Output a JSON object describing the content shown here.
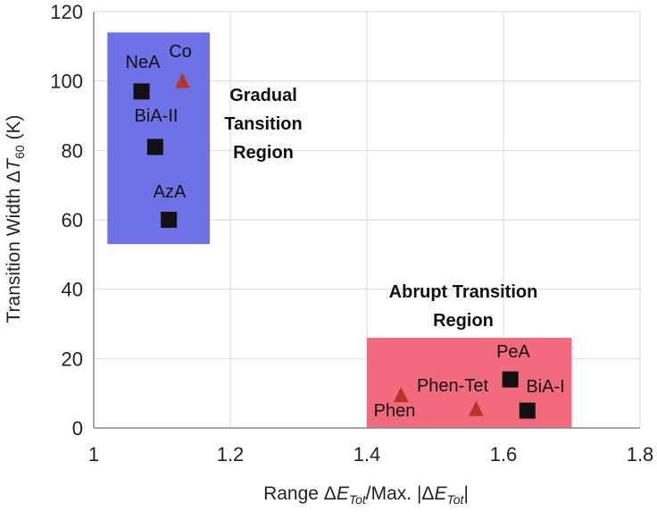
{
  "chart_data": {
    "type": "scatter",
    "xlabel": {
      "pre": "Range Δ",
      "var": "E",
      "sub": "Tot",
      "mid": "/Max. |Δ",
      "var2": "E",
      "sub2": "Tot",
      "post": "|"
    },
    "ylabel": {
      "pre": "Transition Width Δ",
      "var": "T",
      "sub": "60",
      "post": " (K)"
    },
    "xlim": [
      1,
      1.8
    ],
    "ylim": [
      0,
      120
    ],
    "x_ticks": [
      "1",
      "1.2",
      "1.4",
      "1.6",
      "1.8"
    ],
    "y_ticks": [
      "0",
      "20",
      "40",
      "60",
      "80",
      "100",
      "120"
    ],
    "grid": true,
    "regions": [
      {
        "name": "Gradual Tansition Region",
        "lines": [
          "Gradual",
          "Tansition",
          "Region"
        ],
        "x": [
          1.02,
          1.17
        ],
        "y": [
          53,
          114
        ],
        "color": "#6f72e6"
      },
      {
        "name": "Abrupt Transition Region",
        "lines": [
          "Abrupt Transition",
          "Region"
        ],
        "x": [
          1.4,
          1.7
        ],
        "y": [
          0,
          26
        ],
        "color": "#f26b7d"
      }
    ],
    "points": [
      {
        "label": "NeA",
        "x": 1.07,
        "y": 97,
        "marker": "square",
        "color": "#111111"
      },
      {
        "label": "Co",
        "x": 1.13,
        "y": 100,
        "marker": "triangle",
        "color": "#b8352a"
      },
      {
        "label": "BiA-II",
        "x": 1.09,
        "y": 81,
        "marker": "square",
        "color": "#111111"
      },
      {
        "label": "AzA",
        "x": 1.11,
        "y": 60,
        "marker": "square",
        "color": "#111111"
      },
      {
        "label": "PeA",
        "x": 1.61,
        "y": 14,
        "marker": "square",
        "color": "#111111"
      },
      {
        "label": "BiA-I",
        "x": 1.635,
        "y": 5,
        "marker": "square",
        "color": "#111111"
      },
      {
        "label": "Phen-Tet",
        "x": 1.56,
        "y": 5.5,
        "marker": "triangle",
        "color": "#b8352a"
      },
      {
        "label": "Phen",
        "x": 1.45,
        "y": 9.5,
        "marker": "triangle",
        "color": "#b8352a"
      }
    ]
  }
}
